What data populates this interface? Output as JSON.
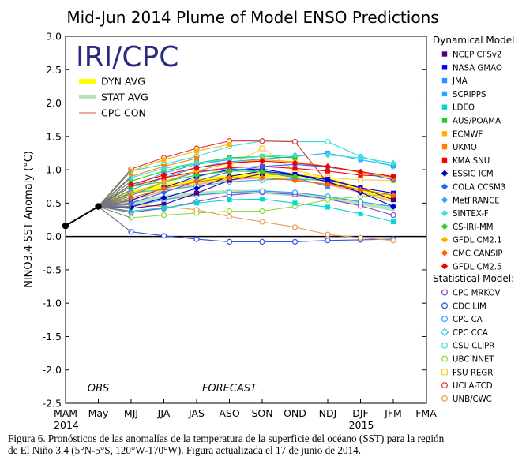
{
  "chart_data": {
    "type": "line",
    "title": "Mid-Jun 2014 Plume of Model ENSO Predictions",
    "ylabel": "NINO3.4 SST Anomaly (°C)",
    "xlabel": "",
    "logo": "IRI/CPC",
    "ylim": [
      -2.5,
      3.0
    ],
    "ytick_step": 0.5,
    "grid": false,
    "categories": [
      "MAM",
      "May",
      "MJJ",
      "JJA",
      "JAS",
      "ASO",
      "SON",
      "OND",
      "NDJ",
      "DJF",
      "JFM",
      "FMA"
    ],
    "year_labels": [
      {
        "text": "2014",
        "at": "MAM"
      },
      {
        "text": "2015",
        "at": "DJF"
      }
    ],
    "period_labels": [
      {
        "text": "OBS",
        "at": "May"
      },
      {
        "text": "FORECAST",
        "at": "ASO"
      }
    ],
    "observed": {
      "categories": [
        "MAM",
        "May"
      ],
      "values": [
        0.16,
        0.45
      ]
    },
    "legend_avg": [
      {
        "label": "DYN AVG",
        "color": "#ffff00"
      },
      {
        "label": "STAT AVG",
        "color": "#b8e0b8"
      },
      {
        "label": "CPC CON",
        "color": "#f0a8a8"
      }
    ],
    "averages": [
      {
        "name": "DYN AVG",
        "color": "#ffff00",
        "values": [
          0.66,
          0.75,
          0.83,
          0.89,
          0.93,
          0.92,
          0.85,
          0.71,
          0.56
        ]
      },
      {
        "name": "STAT AVG",
        "color": "#b8e0b8",
        "values": [
          0.5,
          0.59,
          0.64,
          0.67,
          0.67,
          0.63,
          0.58,
          0.5,
          0.41
        ]
      },
      {
        "name": "CPC CON",
        "color": "#f0a8a8",
        "values": [
          0.55,
          0.68,
          0.78,
          0.85,
          0.88,
          0.85,
          0.78,
          0.66,
          0.52
        ]
      }
    ],
    "dynamical_heading": "Dynamical Model:",
    "statistical_heading": "Statistical Model:",
    "dynamical": [
      {
        "name": "NCEP CFSv2",
        "color": "#4b0082",
        "marker": "square",
        "values": [
          0.42,
          0.48,
          0.65,
          0.84,
          0.94,
          0.92,
          0.86,
          0.73,
          0.55
        ]
      },
      {
        "name": "NASA GMAO",
        "color": "#0000ff",
        "marker": "square",
        "values": [
          0.54,
          0.73,
          0.9,
          1.0,
          1.01,
          0.93,
          0.85,
          0.73,
          0.65
        ]
      },
      {
        "name": "JMA",
        "color": "#2b8fff",
        "marker": "square",
        "values": [
          0.61,
          0.82,
          0.96,
          1.02,
          0.97,
          0.88,
          0.75,
          null,
          null
        ]
      },
      {
        "name": "SCRIPPS",
        "color": "#2aa8ff",
        "marker": "square",
        "values": [
          0.7,
          0.88,
          1.03,
          1.12,
          1.16,
          1.2,
          1.25,
          1.15,
          1.06
        ]
      },
      {
        "name": "LDEO",
        "color": "#00d8d0",
        "marker": "square",
        "values": [
          0.38,
          0.43,
          0.5,
          0.55,
          0.56,
          0.5,
          0.44,
          0.34,
          0.22
        ]
      },
      {
        "name": "AUS/POAMA",
        "color": "#22cc22",
        "marker": "square",
        "values": [
          0.83,
          0.98,
          1.1,
          1.18,
          1.2,
          1.18,
          null,
          null,
          null
        ]
      },
      {
        "name": "ECMWF",
        "color": "#ffb000",
        "marker": "square",
        "values": [
          0.98,
          1.15,
          1.28,
          1.38,
          null,
          null,
          null,
          null,
          null
        ]
      },
      {
        "name": "UKMO",
        "color": "#ff8000",
        "marker": "square",
        "values": [
          0.9,
          1.05,
          1.17,
          null,
          null,
          null,
          null,
          null,
          null
        ]
      },
      {
        "name": "KMA SNU",
        "color": "#ff0000",
        "marker": "square",
        "values": [
          0.75,
          0.88,
          0.97,
          1.03,
          1.05,
          1.02,
          0.98,
          0.92,
          0.9
        ]
      },
      {
        "name": "ESSIC ICM",
        "color": "#0000c0",
        "marker": "diamond",
        "values": [
          0.44,
          0.58,
          0.72,
          0.9,
          0.98,
          0.93,
          0.82,
          0.66,
          0.45
        ]
      },
      {
        "name": "COLA CCSM3",
        "color": "#2266ff",
        "marker": "diamond",
        "values": [
          0.5,
          0.66,
          0.83,
          0.97,
          1.05,
          1.08,
          1.04,
          0.96,
          0.85
        ]
      },
      {
        "name": "MetFRANCE",
        "color": "#3fa0ff",
        "marker": "diamond",
        "values": [
          0.75,
          0.95,
          1.08,
          1.15,
          null,
          null,
          null,
          null,
          null
        ]
      },
      {
        "name": "SINTEX-F",
        "color": "#44dddd",
        "marker": "diamond",
        "values": [
          0.88,
          1.02,
          1.1,
          1.16,
          1.2,
          1.22,
          1.22,
          1.18,
          1.1
        ]
      },
      {
        "name": "CS-IRI-MM",
        "color": "#33cc33",
        "marker": "diamond",
        "values": [
          0.75,
          0.82,
          0.92,
          0.98,
          0.97,
          0.9,
          null,
          null,
          null
        ]
      },
      {
        "name": "GFDL CM2.1",
        "color": "#ffaa00",
        "marker": "diamond",
        "values": [
          0.64,
          0.82,
          0.98,
          1.1,
          1.15,
          1.12,
          1.05,
          0.96,
          0.88
        ]
      },
      {
        "name": "CMC CANSIP",
        "color": "#ff6600",
        "marker": "diamond",
        "values": [
          0.58,
          0.72,
          0.82,
          0.88,
          0.88,
          0.84,
          0.78,
          0.7,
          0.62
        ]
      },
      {
        "name": "GFDL CM2.5",
        "color": "#ee0000",
        "marker": "diamond",
        "values": [
          0.78,
          0.92,
          1.03,
          1.1,
          1.13,
          1.1,
          1.05,
          0.97,
          0.9
        ]
      }
    ],
    "statistical": [
      {
        "name": "CPC MRKOV",
        "color": "#8844cc",
        "marker": "circle",
        "values": [
          0.36,
          0.42,
          0.52,
          0.62,
          0.66,
          0.63,
          0.56,
          0.46,
          0.32
        ]
      },
      {
        "name": "CDC LIM",
        "color": "#3355dd",
        "marker": "circle",
        "values": [
          0.07,
          0.01,
          -0.04,
          -0.08,
          -0.08,
          -0.08,
          -0.06,
          -0.05,
          -0.04
        ]
      },
      {
        "name": "CPC CA",
        "color": "#3399ff",
        "marker": "circle",
        "values": [
          0.45,
          0.55,
          0.62,
          0.66,
          0.68,
          0.66,
          0.6,
          0.52,
          0.45
        ]
      },
      {
        "name": "CPC CCA",
        "color": "#33bbdd",
        "marker": "diamond-open",
        "values": [
          0.66,
          0.7,
          0.75,
          0.82,
          0.85,
          0.86,
          0.84,
          null,
          null
        ]
      },
      {
        "name": "CSU CLIPR",
        "color": "#33dddd",
        "marker": "circle",
        "values": [
          0.98,
          1.08,
          1.2,
          1.35,
          1.43,
          1.42,
          1.42,
          1.2,
          1.05
        ]
      },
      {
        "name": "UBC NNET",
        "color": "#88dd33",
        "marker": "circle",
        "values": [
          0.28,
          0.32,
          0.35,
          0.38,
          0.38,
          0.45,
          0.55,
          0.6,
          0.64
        ]
      },
      {
        "name": "FSU REGR",
        "color": "#ffcc33",
        "marker": "square-open",
        "values": [
          0.55,
          0.7,
          0.88,
          1.05,
          1.32,
          0.99,
          0.88,
          0.85,
          0.84
        ]
      },
      {
        "name": "UCLA-TCD",
        "color": "#dd3333",
        "marker": "circle",
        "values": [
          1.01,
          1.18,
          1.32,
          1.43,
          1.43,
          1.42,
          0.8,
          0.7,
          0.62
        ]
      },
      {
        "name": "UNB/CWC",
        "color": "#ee9955",
        "marker": "circle",
        "values": [
          0.48,
          0.45,
          0.4,
          0.3,
          0.22,
          0.14,
          0.03,
          -0.02,
          -0.06
        ]
      }
    ]
  },
  "caption": {
    "line1": "Figura 6. Pronósticos de las anomalías de la temperatura de la superficie del océano (SST) para la región",
    "line2": "de El Niño 3.4 (5°N-5°S, 120°W-170°W). Figura actualizada el 17 de junio de 2014."
  }
}
